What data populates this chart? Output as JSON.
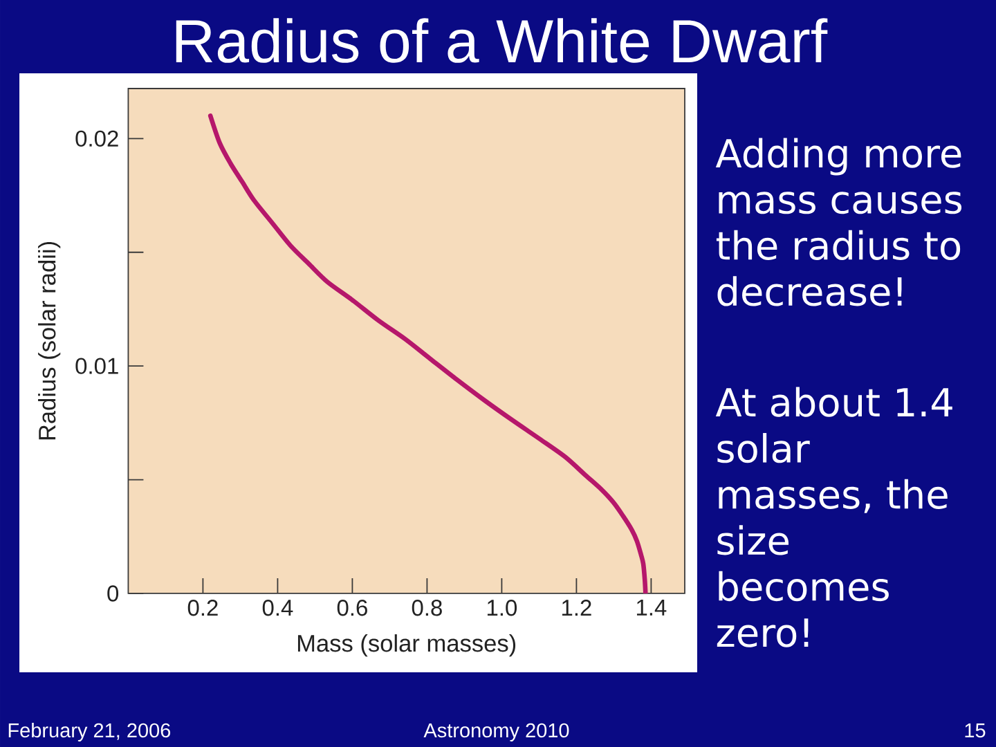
{
  "chart_data": {
    "type": "line",
    "title": "Radius of a White Dwarf",
    "xlabel": "Mass (solar masses)",
    "ylabel": "Radius (solar radii)",
    "x": [
      0.22,
      0.245,
      0.274,
      0.305,
      0.336,
      0.385,
      0.434,
      0.483,
      0.533,
      0.6,
      0.67,
      0.74,
      0.81,
      0.88,
      0.953,
      1.03,
      1.101,
      1.17,
      1.224,
      1.265,
      1.299,
      1.325,
      1.348,
      1.362,
      1.373,
      1.379,
      1.383,
      1.385
    ],
    "values": [
      0.021,
      0.0198,
      0.0189,
      0.0181,
      0.0173,
      0.0163,
      0.0153,
      0.0145,
      0.0137,
      0.0129,
      0.012,
      0.0112,
      0.0103,
      0.0094,
      0.0085,
      0.0076,
      0.0068,
      0.006,
      0.0052,
      0.0046,
      0.004,
      0.0034,
      0.0028,
      0.0023,
      0.0017,
      0.0013,
      0.0006,
      0
    ],
    "color": "#b5176b",
    "xlim": [
      0,
      1.49
    ],
    "ylim": [
      0,
      0.0222
    ],
    "xticks": [
      0.2,
      0.4,
      0.6,
      0.8,
      {
        "value": 1,
        "label": "1.0"
      },
      1.2,
      1.4
    ],
    "yticks": [
      0,
      {
        "value": 0.005,
        "label": null
      },
      0.01,
      {
        "value": 0.015,
        "label": null
      },
      0.02
    ],
    "annotations": [
      "Adding more mass causes the radius to decrease!",
      "At about 1.4 solar masses, the size becomes zero!",
      "February 21, 2006",
      "Astronomy 2010",
      "15"
    ]
  }
}
